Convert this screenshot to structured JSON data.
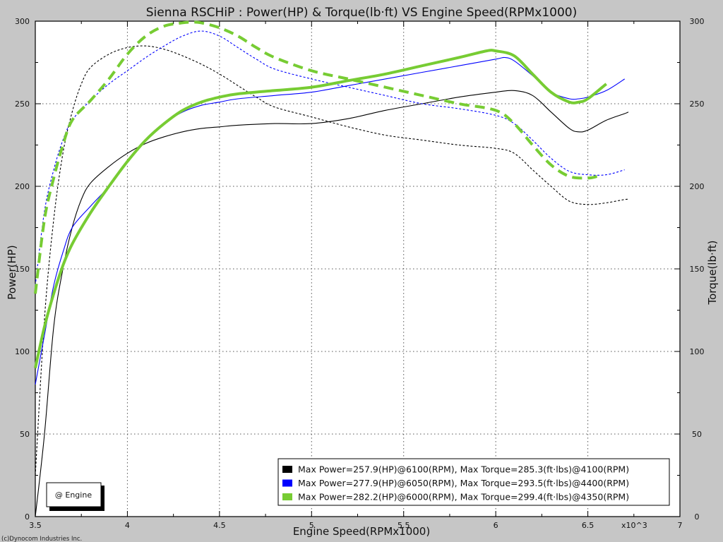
{
  "chart_data": {
    "type": "line",
    "title": "Sienna RSCHiP : Power(HP) & Torque(lb·ft) VS Engine Speed(RPMx1000)",
    "xlabel": "Engine Speed(RPMx1000)",
    "ylabel_left": "Power(HP)",
    "ylabel_right": "Torque(lb·ft)",
    "xlim": [
      3.5,
      7
    ],
    "ylim": [
      0,
      300
    ],
    "x_ticks": [
      "3.5",
      "4",
      "4.5",
      "5",
      "5.5",
      "6",
      "6.5",
      "7"
    ],
    "x_multiplier_label": "x10^3",
    "y_ticks": [
      "0",
      "50",
      "100",
      "150",
      "200",
      "250",
      "300"
    ],
    "grid": true,
    "legend_position": "bottom-right",
    "series": [
      {
        "color": "#000000",
        "legend": "Max Power=257.9(HP)@6100(RPM), Max Torque=285.3(ft·lbs)@4100(RPM)",
        "power": [
          [
            3.5,
            0
          ],
          [
            3.55,
            50
          ],
          [
            3.6,
            115
          ],
          [
            3.65,
            150
          ],
          [
            3.7,
            175
          ],
          [
            3.75,
            192
          ],
          [
            3.8,
            202
          ],
          [
            3.9,
            212
          ],
          [
            4.0,
            220
          ],
          [
            4.1,
            226
          ],
          [
            4.2,
            230
          ],
          [
            4.3,
            233
          ],
          [
            4.4,
            235
          ],
          [
            4.5,
            236
          ],
          [
            4.6,
            237
          ],
          [
            4.8,
            238
          ],
          [
            5.0,
            238
          ],
          [
            5.2,
            241
          ],
          [
            5.4,
            246
          ],
          [
            5.6,
            250
          ],
          [
            5.8,
            254
          ],
          [
            6.0,
            257
          ],
          [
            6.1,
            258
          ],
          [
            6.2,
            255
          ],
          [
            6.3,
            245
          ],
          [
            6.4,
            235
          ],
          [
            6.45,
            233
          ],
          [
            6.5,
            234
          ],
          [
            6.6,
            240
          ],
          [
            6.7,
            244
          ],
          [
            6.72,
            245
          ]
        ],
        "torque": [
          [
            3.5,
            25
          ],
          [
            3.55,
            120
          ],
          [
            3.6,
            180
          ],
          [
            3.65,
            220
          ],
          [
            3.7,
            245
          ],
          [
            3.75,
            262
          ],
          [
            3.8,
            272
          ],
          [
            3.9,
            280
          ],
          [
            4.0,
            284
          ],
          [
            4.1,
            285
          ],
          [
            4.2,
            283
          ],
          [
            4.3,
            279
          ],
          [
            4.4,
            274
          ],
          [
            4.5,
            268
          ],
          [
            4.6,
            261
          ],
          [
            4.7,
            254
          ],
          [
            4.8,
            248
          ],
          [
            5.0,
            242
          ],
          [
            5.2,
            236
          ],
          [
            5.4,
            231
          ],
          [
            5.6,
            228
          ],
          [
            5.8,
            225
          ],
          [
            6.0,
            223
          ],
          [
            6.1,
            220
          ],
          [
            6.2,
            210
          ],
          [
            6.3,
            200
          ],
          [
            6.4,
            191
          ],
          [
            6.5,
            189
          ],
          [
            6.6,
            190
          ],
          [
            6.7,
            192
          ],
          [
            6.72,
            192
          ]
        ]
      },
      {
        "color": "#0000ff",
        "legend": "Max Power=277.9(HP)@6050(RPM), Max Torque=293.5(ft·lbs)@4400(RPM)",
        "power": [
          [
            3.5,
            80
          ],
          [
            3.55,
            110
          ],
          [
            3.6,
            140
          ],
          [
            3.65,
            160
          ],
          [
            3.7,
            175
          ],
          [
            3.8,
            188
          ],
          [
            3.9,
            200
          ],
          [
            4.0,
            215
          ],
          [
            4.1,
            228
          ],
          [
            4.2,
            238
          ],
          [
            4.3,
            245
          ],
          [
            4.4,
            249
          ],
          [
            4.5,
            251
          ],
          [
            4.6,
            253
          ],
          [
            4.8,
            255
          ],
          [
            5.0,
            257
          ],
          [
            5.2,
            261
          ],
          [
            5.4,
            265
          ],
          [
            5.6,
            269
          ],
          [
            5.8,
            273
          ],
          [
            6.0,
            277
          ],
          [
            6.05,
            278
          ],
          [
            6.1,
            276
          ],
          [
            6.2,
            267
          ],
          [
            6.3,
            257
          ],
          [
            6.4,
            253
          ],
          [
            6.45,
            253
          ],
          [
            6.5,
            254
          ],
          [
            6.6,
            258
          ],
          [
            6.7,
            265
          ]
        ],
        "torque": [
          [
            3.5,
            140
          ],
          [
            3.55,
            185
          ],
          [
            3.6,
            210
          ],
          [
            3.65,
            228
          ],
          [
            3.7,
            240
          ],
          [
            3.8,
            252
          ],
          [
            3.9,
            262
          ],
          [
            4.0,
            270
          ],
          [
            4.1,
            278
          ],
          [
            4.2,
            285
          ],
          [
            4.3,
            291
          ],
          [
            4.4,
            294
          ],
          [
            4.5,
            291
          ],
          [
            4.6,
            284
          ],
          [
            4.7,
            277
          ],
          [
            4.8,
            271
          ],
          [
            5.0,
            265
          ],
          [
            5.2,
            260
          ],
          [
            5.4,
            255
          ],
          [
            5.6,
            250
          ],
          [
            5.8,
            247
          ],
          [
            6.0,
            243
          ],
          [
            6.1,
            238
          ],
          [
            6.2,
            228
          ],
          [
            6.3,
            217
          ],
          [
            6.4,
            209
          ],
          [
            6.5,
            207
          ],
          [
            6.6,
            207
          ],
          [
            6.7,
            210
          ]
        ]
      },
      {
        "color": "#77cc33",
        "legend": "Max Power=282.2(HP)@6000(RPM), Max Torque=299.4(ft·lbs)@4350(RPM)",
        "power": [
          [
            3.5,
            90
          ],
          [
            3.55,
            115
          ],
          [
            3.6,
            135
          ],
          [
            3.65,
            152
          ],
          [
            3.7,
            165
          ],
          [
            3.8,
            184
          ],
          [
            3.9,
            200
          ],
          [
            4.0,
            215
          ],
          [
            4.1,
            228
          ],
          [
            4.2,
            238
          ],
          [
            4.3,
            246
          ],
          [
            4.4,
            251
          ],
          [
            4.5,
            254
          ],
          [
            4.6,
            256
          ],
          [
            4.8,
            258
          ],
          [
            5.0,
            260
          ],
          [
            5.2,
            264
          ],
          [
            5.4,
            268
          ],
          [
            5.6,
            273
          ],
          [
            5.8,
            278
          ],
          [
            5.95,
            282
          ],
          [
            6.0,
            282
          ],
          [
            6.1,
            279
          ],
          [
            6.2,
            268
          ],
          [
            6.3,
            257
          ],
          [
            6.4,
            251
          ],
          [
            6.45,
            251
          ],
          [
            6.5,
            253
          ],
          [
            6.6,
            262
          ]
        ],
        "torque": [
          [
            3.5,
            135
          ],
          [
            3.55,
            180
          ],
          [
            3.6,
            205
          ],
          [
            3.65,
            225
          ],
          [
            3.7,
            240
          ],
          [
            3.8,
            252
          ],
          [
            3.9,
            265
          ],
          [
            4.0,
            280
          ],
          [
            4.1,
            291
          ],
          [
            4.2,
            297
          ],
          [
            4.3,
            299
          ],
          [
            4.35,
            299.4
          ],
          [
            4.4,
            299
          ],
          [
            4.5,
            296
          ],
          [
            4.6,
            291
          ],
          [
            4.7,
            284
          ],
          [
            4.8,
            278
          ],
          [
            5.0,
            270
          ],
          [
            5.2,
            265
          ],
          [
            5.4,
            260
          ],
          [
            5.6,
            255
          ],
          [
            5.8,
            250
          ],
          [
            6.0,
            246
          ],
          [
            6.1,
            238
          ],
          [
            6.2,
            225
          ],
          [
            6.3,
            213
          ],
          [
            6.4,
            206
          ],
          [
            6.5,
            205
          ],
          [
            6.55,
            206
          ]
        ]
      }
    ]
  },
  "annotations": {
    "engine_box_label": "@ Engine",
    "copyright": "(c)Dynocom Industries Inc."
  }
}
